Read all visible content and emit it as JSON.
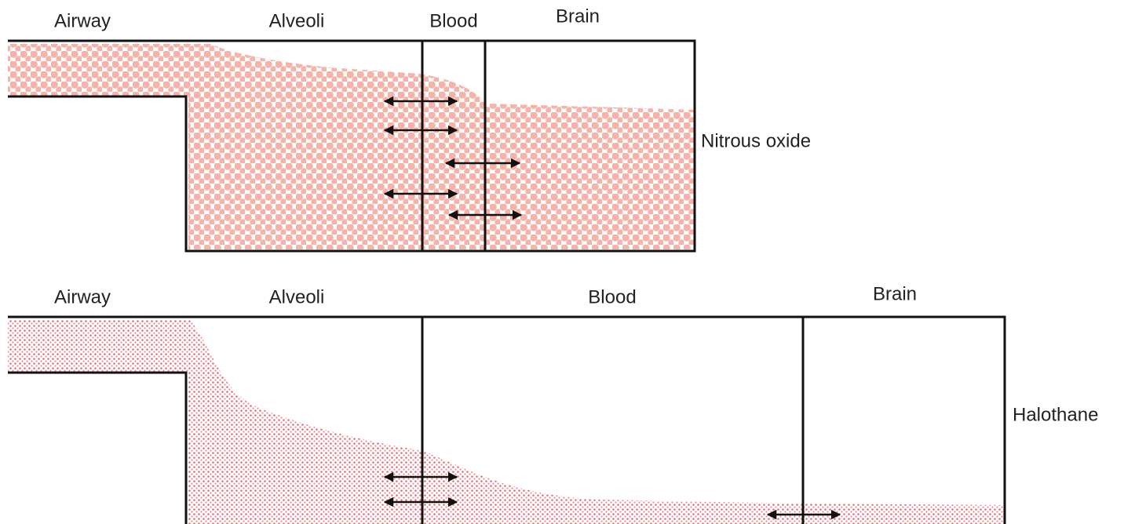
{
  "panels": [
    {
      "labels": [
        "Airway",
        "Alveoli",
        "Blood",
        "Brain"
      ],
      "agent": "Nitrous oxide"
    },
    {
      "labels": [
        "Airway",
        "Alveoli",
        "Blood",
        "Brain"
      ],
      "agent": "Halothane"
    }
  ]
}
